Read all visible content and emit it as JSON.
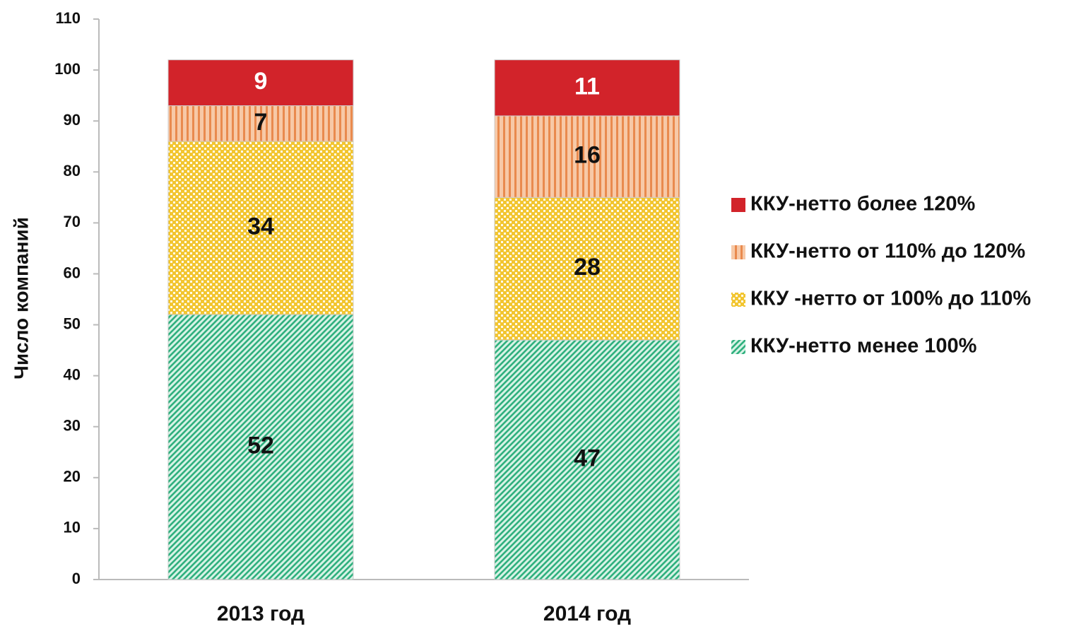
{
  "chart_data": {
    "type": "stacked_bar",
    "ylabel": "Число компаний",
    "categories": [
      "2013 год",
      "2014 год"
    ],
    "series": [
      {
        "name": "ККУ-нетто менее 100%",
        "color": "#2fb07e",
        "pattern": "diagonal",
        "values": [
          52,
          47
        ]
      },
      {
        "name": "ККУ -нетто от 100% до 110%",
        "color": "#f2c530",
        "pattern": "dots",
        "values": [
          34,
          28
        ]
      },
      {
        "name": "ККУ-нетто от 110% до 120%",
        "color": "#e98a4e",
        "pattern": "vertical",
        "values": [
          7,
          16
        ]
      },
      {
        "name": "ККУ-нетто более 120%",
        "color": "#d2232a",
        "pattern": "solid",
        "values": [
          9,
          11
        ]
      }
    ],
    "ylim": [
      0,
      110
    ],
    "yticks": [
      0,
      10,
      20,
      30,
      40,
      50,
      60,
      70,
      80,
      90,
      100,
      110
    ],
    "legend": "right"
  }
}
